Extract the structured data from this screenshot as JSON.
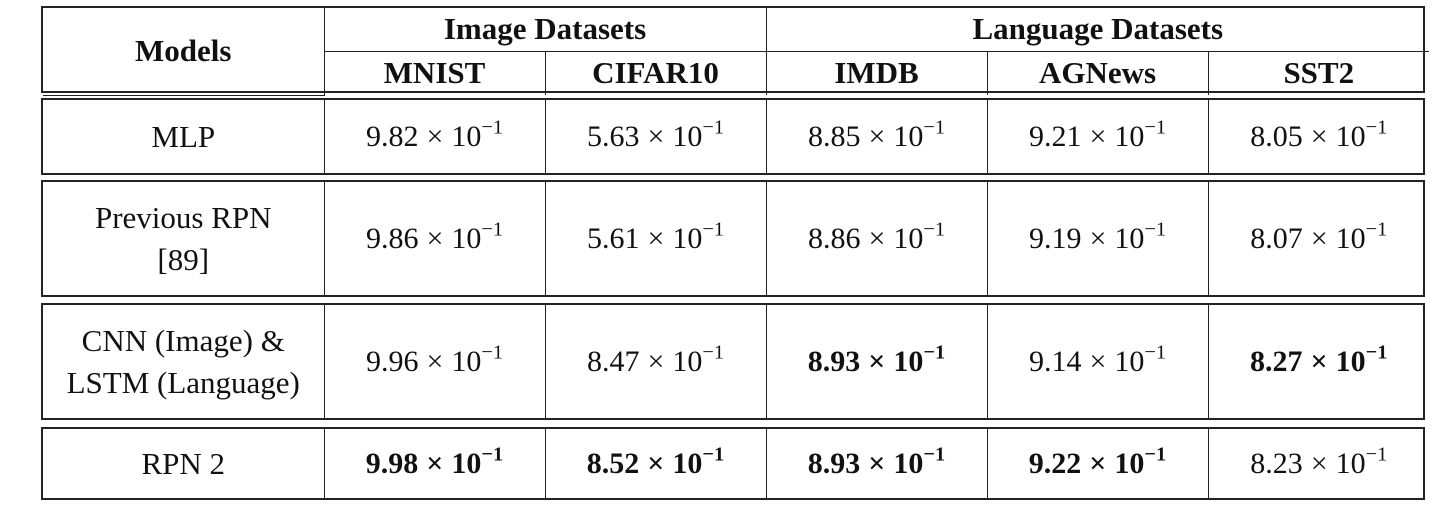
{
  "header": {
    "models_label": "Models",
    "groups": [
      {
        "label": "Image Datasets"
      },
      {
        "label": "Language Datasets"
      }
    ],
    "columns": [
      "MNIST",
      "CIFAR10",
      "IMDB",
      "AGNews",
      "SST2"
    ]
  },
  "rows": [
    {
      "model_lines": [
        "MLP"
      ],
      "cells": [
        {
          "mant": "9.82",
          "exp": "−1",
          "bold": false
        },
        {
          "mant": "5.63",
          "exp": "−1",
          "bold": false
        },
        {
          "mant": "8.85",
          "exp": "−1",
          "bold": false
        },
        {
          "mant": "9.21",
          "exp": "−1",
          "bold": false
        },
        {
          "mant": "8.05",
          "exp": "−1",
          "bold": false
        }
      ]
    },
    {
      "model_lines": [
        "Previous RPN",
        "[89]"
      ],
      "cells": [
        {
          "mant": "9.86",
          "exp": "−1",
          "bold": false
        },
        {
          "mant": "5.61",
          "exp": "−1",
          "bold": false
        },
        {
          "mant": "8.86",
          "exp": "−1",
          "bold": false
        },
        {
          "mant": "9.19",
          "exp": "−1",
          "bold": false
        },
        {
          "mant": "8.07",
          "exp": "−1",
          "bold": false
        }
      ]
    },
    {
      "model_lines": [
        "CNN (Image) &",
        "LSTM (Language)"
      ],
      "cells": [
        {
          "mant": "9.96",
          "exp": "−1",
          "bold": false
        },
        {
          "mant": "8.47",
          "exp": "−1",
          "bold": false
        },
        {
          "mant": "8.93",
          "exp": "−1",
          "bold": true
        },
        {
          "mant": "9.14",
          "exp": "−1",
          "bold": false
        },
        {
          "mant": "8.27",
          "exp": "−1",
          "bold": true
        }
      ]
    },
    {
      "model_lines": [
        "RPN 2"
      ],
      "cells": [
        {
          "mant": "9.98",
          "exp": "−1",
          "bold": true
        },
        {
          "mant": "8.52",
          "exp": "−1",
          "bold": true
        },
        {
          "mant": "8.93",
          "exp": "−1",
          "bold": true
        },
        {
          "mant": "9.22",
          "exp": "−1",
          "bold": true
        },
        {
          "mant": "8.23",
          "exp": "−1",
          "bold": false
        }
      ]
    }
  ],
  "symbols": {
    "times": "×",
    "base": "10"
  }
}
